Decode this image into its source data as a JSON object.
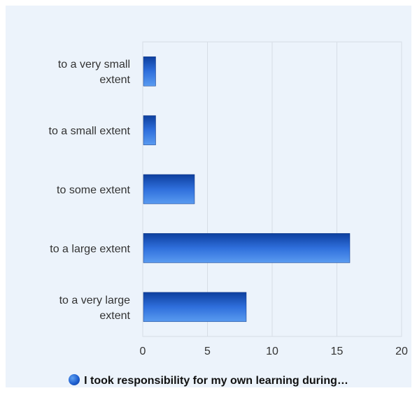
{
  "chart_data": {
    "type": "bar",
    "orientation": "horizontal",
    "categories": [
      [
        "to a very small",
        "extent"
      ],
      [
        "to a small extent"
      ],
      [
        "to some extent"
      ],
      [
        "to a large extent"
      ],
      [
        "to a very large",
        "extent"
      ]
    ],
    "series": [
      {
        "name": "I took responsibility for my own learning during…",
        "values": [
          1,
          1,
          4,
          16,
          8
        ]
      }
    ],
    "xlim": [
      0,
      20
    ],
    "xticks": [
      0,
      5,
      10,
      15,
      20
    ],
    "grid": true,
    "legend_position": "bottom",
    "colors": {
      "bar_dark": "#0d3f9e",
      "bar_light": "#5a9bf0",
      "background": "#ecf3fb",
      "grid": "#d6dde6"
    }
  }
}
